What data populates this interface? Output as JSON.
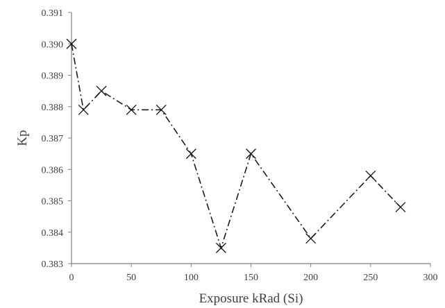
{
  "chart_data": {
    "type": "line",
    "title": "",
    "xlabel": "Exposure kRad (Si)",
    "ylabel": "Kp",
    "xlim": [
      0,
      300
    ],
    "ylim": [
      0.383,
      0.391
    ],
    "x_ticks": [
      "0",
      "50",
      "100",
      "150",
      "200",
      "250",
      "300"
    ],
    "y_ticks": [
      "0.383",
      "0.384",
      "0.385",
      "0.386",
      "0.387",
      "0.388",
      "0.389",
      "0.390",
      "0.391"
    ],
    "grid": false,
    "legend": "none",
    "series": [
      {
        "x": [
          0,
          10,
          25,
          50,
          75,
          100,
          125,
          150,
          200,
          250,
          275
        ],
        "values": [
          0.39,
          0.3879,
          0.3885,
          0.3879,
          0.3879,
          0.3865,
          0.3835,
          0.3865,
          0.3838,
          0.3858,
          0.3848
        ],
        "marker": "x",
        "line_style": "dash-dot",
        "color": "#1a1a1a"
      }
    ]
  }
}
